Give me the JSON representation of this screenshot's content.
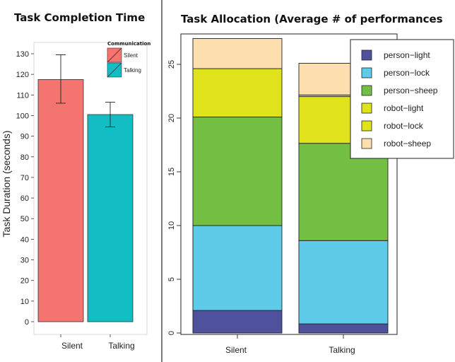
{
  "chart_data": [
    {
      "type": "bar",
      "title": "Task Completion Time",
      "xlabel": "",
      "ylabel": "Task Duration (seconds)",
      "categories": [
        "Silent",
        "Talking"
      ],
      "values": [
        117.5,
        100.5
      ],
      "error_low": [
        106,
        94.5
      ],
      "error_high": [
        129.5,
        106.5
      ],
      "ylim": [
        0,
        136
      ],
      "yticks": [
        0,
        10,
        20,
        30,
        40,
        50,
        60,
        70,
        80,
        90,
        100,
        110,
        120,
        130
      ],
      "colors": [
        "#F47570",
        "#12BEC4"
      ],
      "legend": {
        "title": "Communication",
        "placement": "top-right",
        "entries": [
          "Silent",
          "Talking"
        ]
      },
      "grid": false
    },
    {
      "type": "bar",
      "stacked": true,
      "title": "Task Allocation (Average # of performances",
      "xlabel": "",
      "ylabel": "",
      "categories": [
        "Silent",
        "Talking"
      ],
      "ylim": [
        0,
        27.5
      ],
      "yticks": [
        0,
        5,
        10,
        15,
        20,
        25
      ],
      "series": [
        {
          "name": "person−light",
          "color": "#4F519D",
          "values": [
            2.1,
            0.85
          ]
        },
        {
          "name": "person−lock",
          "color": "#5ECBE8",
          "values": [
            7.9,
            7.75
          ]
        },
        {
          "name": "person−sheep",
          "color": "#72BF44",
          "values": [
            10.1,
            9.05
          ]
        },
        {
          "name": "robot−light",
          "color": "#E0E21C",
          "values": [
            4.5,
            4.35
          ]
        },
        {
          "name": "robot−lock",
          "color": "#E0E21C",
          "values": [
            0,
            0.15
          ]
        },
        {
          "name": "robot−sheep",
          "color": "#FDDEAF",
          "values": [
            2.8,
            2.95
          ]
        }
      ],
      "legend": {
        "placement": "top-right"
      },
      "grid": false
    }
  ]
}
